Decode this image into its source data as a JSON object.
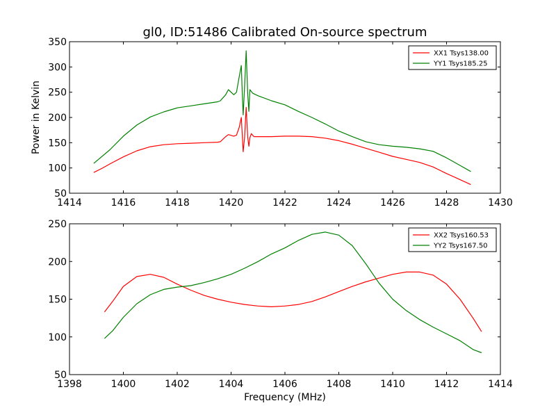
{
  "chart_data": [
    {
      "type": "line",
      "title": "gl0, ID:51486 Calibrated On-source spectrum",
      "xlabel": "",
      "ylabel": "Power in Kelvin",
      "xlim": [
        1414,
        1430
      ],
      "ylim": [
        50,
        350
      ],
      "xticks": [
        1414,
        1416,
        1418,
        1420,
        1422,
        1424,
        1426,
        1428,
        1430
      ],
      "yticks": [
        50,
        100,
        150,
        200,
        250,
        300,
        350
      ],
      "legend_position": "top-right",
      "series": [
        {
          "name": "XX1 Tsys138.00",
          "color": "#ff0000",
          "points": [
            [
              1414.9,
              91
            ],
            [
              1415.2,
              99
            ],
            [
              1415.5,
              108
            ],
            [
              1416.0,
              122
            ],
            [
              1416.5,
              134
            ],
            [
              1417.0,
              142
            ],
            [
              1417.5,
              146
            ],
            [
              1418.0,
              148
            ],
            [
              1418.5,
              149
            ],
            [
              1419.0,
              150
            ],
            [
              1419.5,
              151
            ],
            [
              1419.6,
              152
            ],
            [
              1419.8,
              162
            ],
            [
              1419.9,
              166
            ],
            [
              1420.1,
              163
            ],
            [
              1420.2,
              165
            ],
            [
              1420.3,
              180
            ],
            [
              1420.38,
              200
            ],
            [
              1420.42,
              160
            ],
            [
              1420.45,
              132
            ],
            [
              1420.5,
              160
            ],
            [
              1420.56,
              220
            ],
            [
              1420.62,
              160
            ],
            [
              1420.66,
              143
            ],
            [
              1420.7,
              160
            ],
            [
              1420.75,
              168
            ],
            [
              1420.85,
              162
            ],
            [
              1421.0,
              162
            ],
            [
              1421.5,
              162
            ],
            [
              1422.0,
              163
            ],
            [
              1422.5,
              163
            ],
            [
              1423.0,
              162
            ],
            [
              1423.5,
              159
            ],
            [
              1424.0,
              154
            ],
            [
              1424.5,
              147
            ],
            [
              1425.0,
              139
            ],
            [
              1425.5,
              131
            ],
            [
              1426.0,
              123
            ],
            [
              1426.5,
              117
            ],
            [
              1427.0,
              111
            ],
            [
              1427.5,
              102
            ],
            [
              1428.0,
              89
            ],
            [
              1428.5,
              77
            ],
            [
              1428.9,
              67
            ]
          ]
        },
        {
          "name": "YY1 Tsys185.25",
          "color": "#008000",
          "points": [
            [
              1414.9,
              109
            ],
            [
              1415.5,
              136
            ],
            [
              1416.0,
              163
            ],
            [
              1416.5,
              185
            ],
            [
              1417.0,
              201
            ],
            [
              1417.5,
              211
            ],
            [
              1418.0,
              219
            ],
            [
              1418.5,
              223
            ],
            [
              1419.0,
              227
            ],
            [
              1419.5,
              231
            ],
            [
              1419.6,
              233
            ],
            [
              1419.8,
              245
            ],
            [
              1419.9,
              255
            ],
            [
              1420.1,
              245
            ],
            [
              1420.2,
              250
            ],
            [
              1420.3,
              280
            ],
            [
              1420.38,
              303
            ],
            [
              1420.42,
              240
            ],
            [
              1420.45,
              205
            ],
            [
              1420.5,
              260
            ],
            [
              1420.56,
              332
            ],
            [
              1420.62,
              245
            ],
            [
              1420.66,
              212
            ],
            [
              1420.7,
              255
            ],
            [
              1420.8,
              248
            ],
            [
              1421.0,
              243
            ],
            [
              1421.5,
              233
            ],
            [
              1422.0,
              225
            ],
            [
              1422.5,
              212
            ],
            [
              1423.0,
              200
            ],
            [
              1423.5,
              187
            ],
            [
              1424.0,
              173
            ],
            [
              1424.5,
              162
            ],
            [
              1425.0,
              152
            ],
            [
              1425.5,
              146
            ],
            [
              1426.0,
              143
            ],
            [
              1426.5,
              141
            ],
            [
              1427.0,
              138
            ],
            [
              1427.5,
              133
            ],
            [
              1428.0,
              120
            ],
            [
              1428.5,
              105
            ],
            [
              1428.9,
              93
            ]
          ]
        }
      ]
    },
    {
      "type": "line",
      "title": "",
      "xlabel": "Frequency (MHz)",
      "ylabel": "",
      "xlim": [
        1398,
        1414
      ],
      "ylim": [
        50,
        250
      ],
      "xticks": [
        1398,
        1400,
        1402,
        1404,
        1406,
        1408,
        1410,
        1412,
        1414
      ],
      "yticks": [
        50,
        100,
        150,
        200,
        250
      ],
      "legend_position": "top-right",
      "series": [
        {
          "name": "XX2 Tsys160.53",
          "color": "#ff0000",
          "points": [
            [
              1399.3,
              133
            ],
            [
              1399.6,
              147
            ],
            [
              1400.0,
              167
            ],
            [
              1400.5,
              180
            ],
            [
              1401.0,
              183
            ],
            [
              1401.5,
              179
            ],
            [
              1402.0,
              170
            ],
            [
              1402.5,
              162
            ],
            [
              1403.0,
              155
            ],
            [
              1403.5,
              150
            ],
            [
              1404.0,
              146
            ],
            [
              1404.5,
              143
            ],
            [
              1405.0,
              141
            ],
            [
              1405.5,
              140
            ],
            [
              1406.0,
              141
            ],
            [
              1406.5,
              143
            ],
            [
              1407.0,
              147
            ],
            [
              1407.5,
              153
            ],
            [
              1408.0,
              160
            ],
            [
              1408.5,
              167
            ],
            [
              1409.0,
              173
            ],
            [
              1409.5,
              178
            ],
            [
              1410.0,
              183
            ],
            [
              1410.5,
              186
            ],
            [
              1411.0,
              186
            ],
            [
              1411.5,
              182
            ],
            [
              1412.0,
              170
            ],
            [
              1412.5,
              150
            ],
            [
              1413.0,
              124
            ],
            [
              1413.3,
              107
            ]
          ]
        },
        {
          "name": "YY2 Tsys167.50",
          "color": "#008000",
          "points": [
            [
              1399.3,
              98
            ],
            [
              1399.6,
              108
            ],
            [
              1400.0,
              126
            ],
            [
              1400.5,
              144
            ],
            [
              1401.0,
              156
            ],
            [
              1401.5,
              163
            ],
            [
              1402.0,
              166
            ],
            [
              1402.5,
              168
            ],
            [
              1403.0,
              172
            ],
            [
              1403.5,
              177
            ],
            [
              1404.0,
              183
            ],
            [
              1404.5,
              191
            ],
            [
              1405.0,
              200
            ],
            [
              1405.5,
              210
            ],
            [
              1406.0,
              218
            ],
            [
              1406.5,
              228
            ],
            [
              1407.0,
              236
            ],
            [
              1407.5,
              239
            ],
            [
              1408.0,
              235
            ],
            [
              1408.5,
              221
            ],
            [
              1409.0,
              197
            ],
            [
              1409.5,
              171
            ],
            [
              1410.0,
              150
            ],
            [
              1410.5,
              135
            ],
            [
              1411.0,
              123
            ],
            [
              1411.5,
              113
            ],
            [
              1412.0,
              104
            ],
            [
              1412.5,
              95
            ],
            [
              1413.0,
              83
            ],
            [
              1413.3,
              79
            ]
          ]
        }
      ]
    }
  ]
}
